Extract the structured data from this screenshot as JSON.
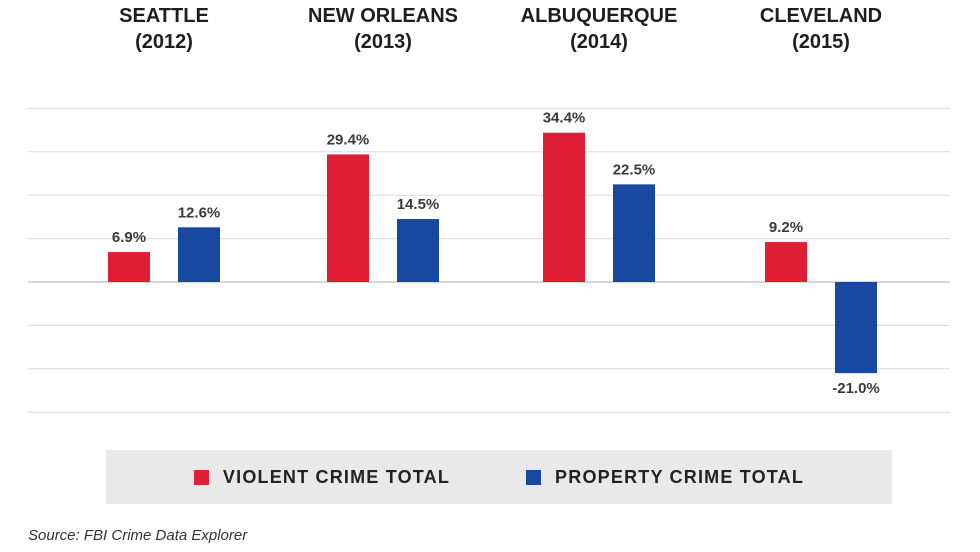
{
  "chart_data": {
    "type": "bar",
    "categories": [
      "SEATTLE\n(2012)",
      "NEW ORLEANS\n(2013)",
      "ALBUQUERQUE\n(2014)",
      "CLEVELAND\n(2015)"
    ],
    "category_lines": [
      [
        "SEATTLE",
        "(2012)"
      ],
      [
        "NEW ORLEANS",
        "(2013)"
      ],
      [
        "ALBUQUERQUE",
        "(2014)"
      ],
      [
        "CLEVELAND",
        "(2015)"
      ]
    ],
    "series": [
      {
        "name": "VIOLENT CRIME TOTAL",
        "values": [
          6.9,
          29.4,
          34.4,
          9.2
        ],
        "labels": [
          "6.9%",
          "29.4%",
          "34.4%",
          "9.2%"
        ],
        "color": "#e01f36"
      },
      {
        "name": "PROPERTY CRIME TOTAL",
        "values": [
          12.6,
          14.5,
          22.5,
          -21.0
        ],
        "labels": [
          "12.6%",
          "14.5%",
          "22.5%",
          "-21.0%"
        ],
        "color": "#1849a0"
      }
    ],
    "ylim": [
      -30,
      40
    ],
    "gridlines": [
      -30,
      -20,
      -10,
      0,
      10,
      20,
      30,
      40
    ],
    "grid": true,
    "legend_placement": "bottom",
    "title": "",
    "xlabel": "",
    "ylabel": ""
  },
  "legend": {
    "violent_label": "VIOLENT CRIME TOTAL",
    "property_label": "PROPERTY CRIME TOTAL"
  },
  "source": "Source: FBI Crime Data Explorer",
  "colors": {
    "violent": "#e01f36",
    "property": "#1849a0",
    "grid": "#dadada",
    "legend_bg": "#e9e9e9"
  }
}
